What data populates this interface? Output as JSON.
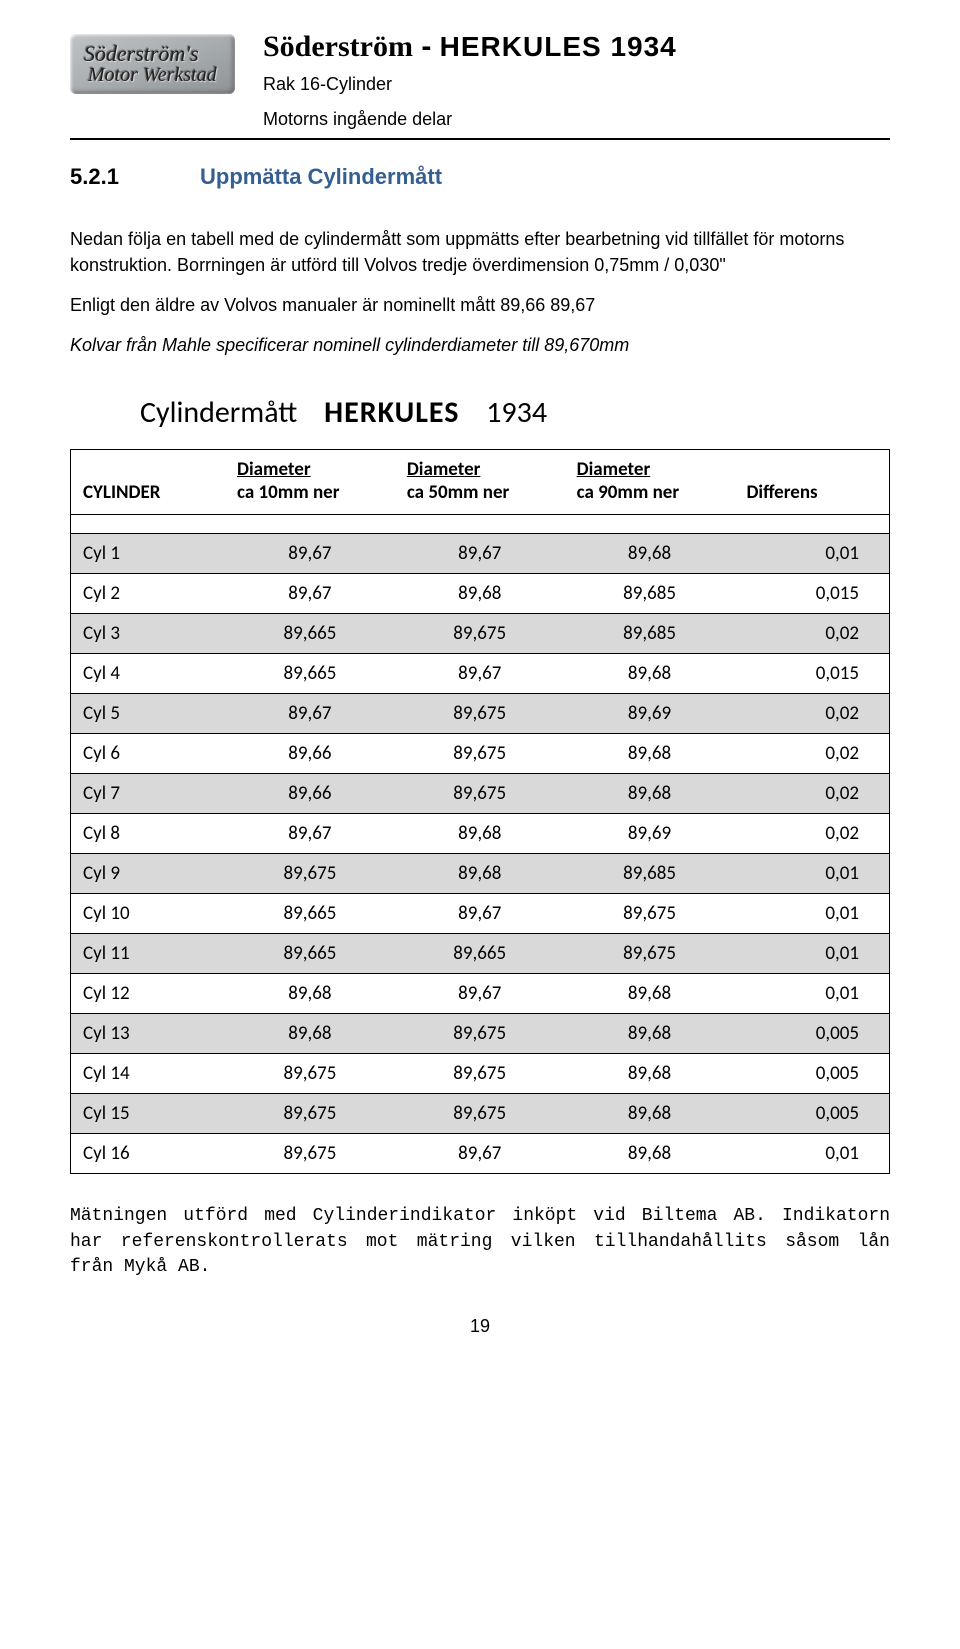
{
  "header": {
    "logo_line1": "Söderström's",
    "logo_line2": "Motor Werkstad",
    "title_part1": "Söderström",
    "title_sep": " - ",
    "title_part2": "HERKULES 1934",
    "subtitle1": "Rak 16-Cylinder",
    "subtitle2": "Motorns ingående delar"
  },
  "section": {
    "number": "5.2.1",
    "title": "Uppmätta Cylindermått",
    "title_color": "#365f91"
  },
  "paragraphs": {
    "p1": "Nedan följa en tabell med de cylindermått som uppmätts efter bearbetning vid tillfället för motorns konstruktion. Borrningen är utförd till Volvos tredje överdimension 0,75mm / 0,030\"",
    "p2": "Enligt den äldre av Volvos manualer är nominellt mått 89,66 89,67",
    "p3": "Kolvar från Mahle specificerar nominell cylinderdiameter till 89,670mm"
  },
  "table_title": {
    "a": "Cylindermått",
    "b": "HERKULES",
    "c": "1934"
  },
  "table": {
    "columns": [
      {
        "line1": "",
        "line2": "CYLINDER"
      },
      {
        "line1": "Diameter",
        "line2": "ca 10mm ner"
      },
      {
        "line1": "Diameter",
        "line2": "ca 50mm ner"
      },
      {
        "line1": "Diameter",
        "line2": "ca 90mm ner"
      },
      {
        "line1": "",
        "line2": "Differens"
      }
    ],
    "rows": [
      [
        "Cyl 1",
        "89,67",
        "89,67",
        "89,68",
        "0,01"
      ],
      [
        "Cyl 2",
        "89,67",
        "89,68",
        "89,685",
        "0,015"
      ],
      [
        "Cyl 3",
        "89,665",
        "89,675",
        "89,685",
        "0,02"
      ],
      [
        "Cyl 4",
        "89,665",
        "89,67",
        "89,68",
        "0,015"
      ],
      [
        "Cyl 5",
        "89,67",
        "89,675",
        "89,69",
        "0,02"
      ],
      [
        "Cyl 6",
        "89,66",
        "89,675",
        "89,68",
        "0,02"
      ],
      [
        "Cyl 7",
        "89,66",
        "89,675",
        "89,68",
        "0,02"
      ],
      [
        "Cyl 8",
        "89,67",
        "89,68",
        "89,69",
        "0,02"
      ],
      [
        "Cyl 9",
        "89,675",
        "89,68",
        "89,685",
        "0,01"
      ],
      [
        "Cyl 10",
        "89,665",
        "89,67",
        "89,675",
        "0,01"
      ],
      [
        "Cyl 11",
        "89,665",
        "89,665",
        "89,675",
        "0,01"
      ],
      [
        "Cyl 12",
        "89,68",
        "89,67",
        "89,68",
        "0,01"
      ],
      [
        "Cyl 13",
        "89,68",
        "89,675",
        "89,68",
        "0,005"
      ],
      [
        "Cyl 14",
        "89,675",
        "89,675",
        "89,68",
        "0,005"
      ],
      [
        "Cyl 15",
        "89,675",
        "89,675",
        "89,68",
        "0,005"
      ],
      [
        "Cyl 16",
        "89,675",
        "89,67",
        "89,68",
        "0,01"
      ]
    ],
    "odd_bg": "#d9d9d9",
    "even_bg": "#ffffff"
  },
  "footer": {
    "text": "Mätningen utförd med Cylinderindikator inköpt vid Biltema AB. Indikatorn har referenskontrollerats mot mätring vilken tillhandahållits såsom lån från Mykå AB.",
    "page_number": "19"
  }
}
